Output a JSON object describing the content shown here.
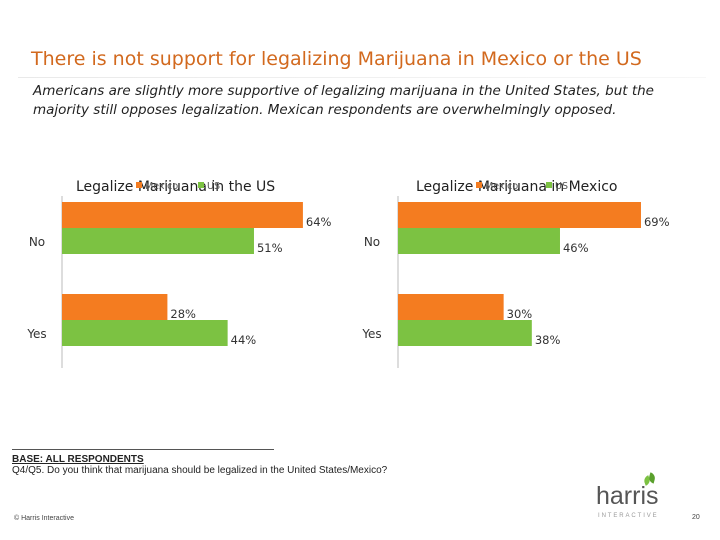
{
  "slide": {
    "title": "There is not support for legalizing Marijuana in Mexico or the US",
    "subtitle": "Americans are slightly more supportive of legalizing marijuana in the United States, but the majority still opposes legalization. Mexican respondents are overwhelmingly opposed.",
    "base_label": "BASE: ALL RESPONDENTS",
    "question": "Q4/Q5.  Do you think that marijuana should be legalized in the United States/Mexico?",
    "copyright": "© Harris Interactive",
    "logo_text": "harris",
    "logo_subtext": "INTERACTIVE",
    "page_number": "20"
  },
  "colors": {
    "title": "#d2691e",
    "mexico_series": "#f47c20",
    "us_series": "#7cc242"
  },
  "chart_data": [
    {
      "type": "bar",
      "orientation": "horizontal",
      "title": "Legalize Marijuana in the US",
      "categories": [
        "No",
        "Yes"
      ],
      "series": [
        {
          "name": "Mexico",
          "values": [
            64,
            28
          ],
          "value_labels": [
            "64%",
            "28%"
          ]
        },
        {
          "name": "US",
          "values": [
            51,
            44
          ],
          "value_labels": [
            "51%",
            "44%"
          ]
        }
      ],
      "xlim": [
        0,
        70
      ],
      "legend": "top (overlapping title)"
    },
    {
      "type": "bar",
      "orientation": "horizontal",
      "title": "Legalize Marijuana in Mexico",
      "categories": [
        "No",
        "Yes"
      ],
      "series": [
        {
          "name": "Mexico",
          "values": [
            69,
            30
          ],
          "value_labels": [
            "69%",
            "30%"
          ]
        },
        {
          "name": "US",
          "values": [
            46,
            38
          ],
          "value_labels": [
            "46%",
            "38%"
          ]
        }
      ],
      "xlim": [
        0,
        70
      ],
      "legend": "top (overlapping title)"
    }
  ]
}
